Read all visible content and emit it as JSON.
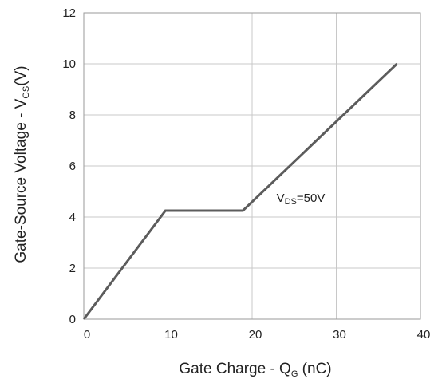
{
  "chart_data": {
    "type": "line",
    "title": "",
    "xlabel": {
      "main": "Gate Charge - Q",
      "sub": "G",
      "unit": " (nC)"
    },
    "ylabel": {
      "main": "Gate-Source Voltage - V",
      "sub": "GS",
      "unit": "(V)"
    },
    "xlim": [
      0,
      40
    ],
    "ylim": [
      0,
      12
    ],
    "xticks": [
      0,
      10,
      20,
      30,
      40
    ],
    "yticks": [
      0,
      2,
      4,
      6,
      8,
      10,
      12
    ],
    "grid": true,
    "series": [
      {
        "x": [
          0,
          9.7,
          18.9,
          37.2
        ],
        "y": [
          0,
          4.25,
          4.25,
          10.0
        ]
      }
    ],
    "annotations": [
      {
        "main": "V",
        "sub": "DS",
        "rest": "=50V",
        "x": 22.9,
        "y": 4.6
      }
    ],
    "colors": {
      "line": "#5c5c5c",
      "grid": "#c8c8c8",
      "frame": "#9a9a9a"
    }
  }
}
